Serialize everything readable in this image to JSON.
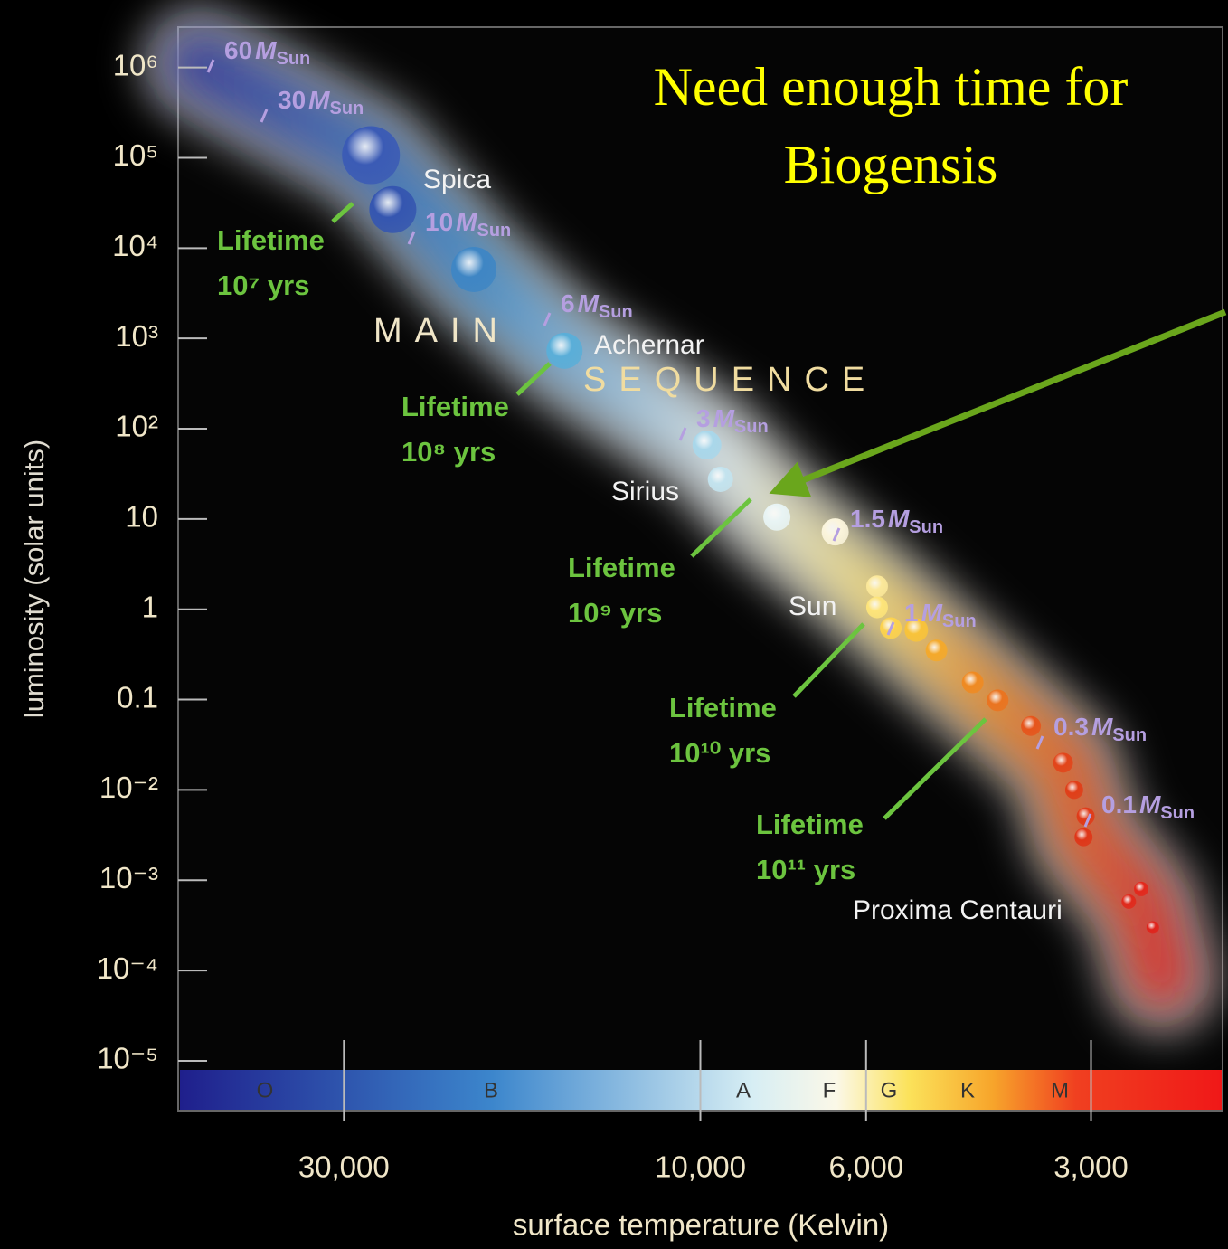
{
  "chart_data": {
    "type": "scatter",
    "title": [
      "Need enough time for",
      "Biogensis"
    ],
    "x_label": "surface temperature (Kelvin)",
    "y_label": "luminosity (solar units)",
    "log_x": true,
    "log_y": true,
    "xlim": [
      50000,
      2000
    ],
    "ylim": [
      5e-06,
      3000000
    ],
    "xticks": [
      {
        "value": 30000,
        "label": "30,000"
      },
      {
        "value": 10000,
        "label": "10,000"
      },
      {
        "value": 6000,
        "label": "6,000"
      },
      {
        "value": 3000,
        "label": "3,000"
      }
    ],
    "yticks": [
      {
        "value": 1000000,
        "label": "10⁶"
      },
      {
        "value": 100000,
        "label": "10⁵"
      },
      {
        "value": 10000,
        "label": "10⁴"
      },
      {
        "value": 1000,
        "label": "10³"
      },
      {
        "value": 100,
        "label": "10²"
      },
      10,
      1,
      0.1,
      {
        "value": 0.01,
        "label": "10⁻²"
      },
      {
        "value": 0.001,
        "label": "10⁻³"
      },
      {
        "value": 0.0001,
        "label": "10⁻⁴"
      },
      {
        "value": 1e-05,
        "label": "10⁻⁵"
      }
    ],
    "x": [
      27600,
      25800,
      20100,
      15200,
      9800,
      9400,
      7900,
      6600,
      5800,
      5800,
      5560,
      5140,
      4830,
      4320,
      4000,
      3610,
      3270,
      3160,
      3050,
      3070,
      2670,
      2570,
      2480
    ],
    "y": [
      107000,
      26700,
      5800,
      730,
      66,
      27.5,
      10.5,
      7.2,
      1.8,
      1.05,
      0.62,
      0.59,
      0.35,
      0.155,
      0.098,
      0.051,
      0.02,
      0.01,
      0.0051,
      0.003,
      0.00058,
      0.0008,
      0.0003
    ],
    "sizes": [
      32,
      26,
      25,
      20,
      16,
      14,
      15,
      15,
      12,
      12,
      12,
      13,
      12,
      12,
      12,
      11,
      11,
      10,
      10,
      10,
      8,
      8,
      7
    ],
    "colors": [
      "#3b5bb5",
      "#3556b0",
      "#3f86c4",
      "#5aaed8",
      "#a9d7ea",
      "#c3e3ee",
      "#e8f4f4",
      "#fbf5dc",
      "#fbe89a",
      "#fde47a",
      "#fcd24e",
      "#f8c33a",
      "#f4a92b",
      "#ef8a22",
      "#ea7420",
      "#e6551c",
      "#e2451a",
      "#e03e18",
      "#e03a18",
      "#df3618",
      "#e02a1c",
      "#e3281c",
      "#e0241c"
    ],
    "spectral_classes": [
      "O",
      "B",
      "A",
      "F",
      "G",
      "K",
      "M"
    ],
    "star_labels": [
      "Spica",
      "Achernar",
      "Sirius",
      "Sun",
      "Proxima Centauri"
    ],
    "mass_labels": [
      {
        "value": 60,
        "symbol": "M",
        "sub": "Sun"
      },
      {
        "value": 30,
        "symbol": "M",
        "sub": "Sun"
      },
      {
        "value": 10,
        "symbol": "M",
        "sub": "Sun"
      },
      {
        "value": 6,
        "symbol": "M",
        "sub": "Sun"
      },
      {
        "value": 3,
        "symbol": "M",
        "sub": "Sun"
      },
      {
        "value": 1.5,
        "symbol": "M",
        "sub": "Sun"
      },
      {
        "value": 1,
        "symbol": "M",
        "sub": "Sun"
      },
      {
        "value": 0.3,
        "symbol": "M",
        "sub": "Sun"
      },
      {
        "value": 0.1,
        "symbol": "M",
        "sub": "Sun"
      }
    ],
    "lifetimes": [
      {
        "text": "Lifetime",
        "years": "10⁷ yrs"
      },
      {
        "text": "Lifetime",
        "years": "10⁸ yrs"
      },
      {
        "text": "Lifetime",
        "years": "10⁹ yrs"
      },
      {
        "text": "Lifetime",
        "years": "10¹⁰ yrs"
      },
      {
        "text": "Lifetime",
        "years": "10¹¹ yrs"
      }
    ],
    "region_label": [
      "MAIN",
      "SEQUENCE"
    ]
  }
}
